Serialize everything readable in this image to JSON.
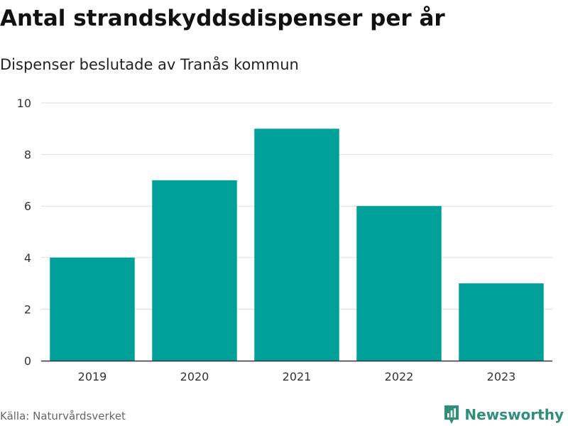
{
  "header": {
    "title": "Antal strandskyddsdispenser per år",
    "subtitle": "Dispenser beslutade av Tranås kommun"
  },
  "chart_data": {
    "type": "bar",
    "title": "Antal strandskyddsdispenser per år",
    "subtitle": "Dispenser beslutade av Tranås kommun",
    "categories": [
      "2019",
      "2020",
      "2021",
      "2022",
      "2023"
    ],
    "values": [
      4,
      7,
      9,
      6,
      3
    ],
    "xlabel": "",
    "ylabel": "",
    "ylim": [
      0,
      10
    ],
    "yticks": [
      "0",
      "2",
      "4",
      "6",
      "8",
      "10"
    ],
    "grid": "horizontal",
    "legend": "none",
    "bar_color": "#00a19a"
  },
  "footer": {
    "source": "Källa: Naturvårdsverket",
    "brand": "Newsworthy",
    "brand_color": "#2f8f7a"
  }
}
